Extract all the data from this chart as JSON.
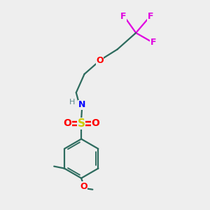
{
  "bg_color": "#eeeeee",
  "bond_color": "#2d6b5e",
  "f_color": "#e000e0",
  "o_color": "#ff0000",
  "n_color": "#0000ff",
  "s_color": "#cccc00",
  "h_color": "#5a8a8a",
  "lw": 1.6,
  "figsize": [
    3.0,
    3.0
  ],
  "dpi": 100,
  "xlim": [
    0,
    10
  ],
  "ylim": [
    0,
    10
  ]
}
